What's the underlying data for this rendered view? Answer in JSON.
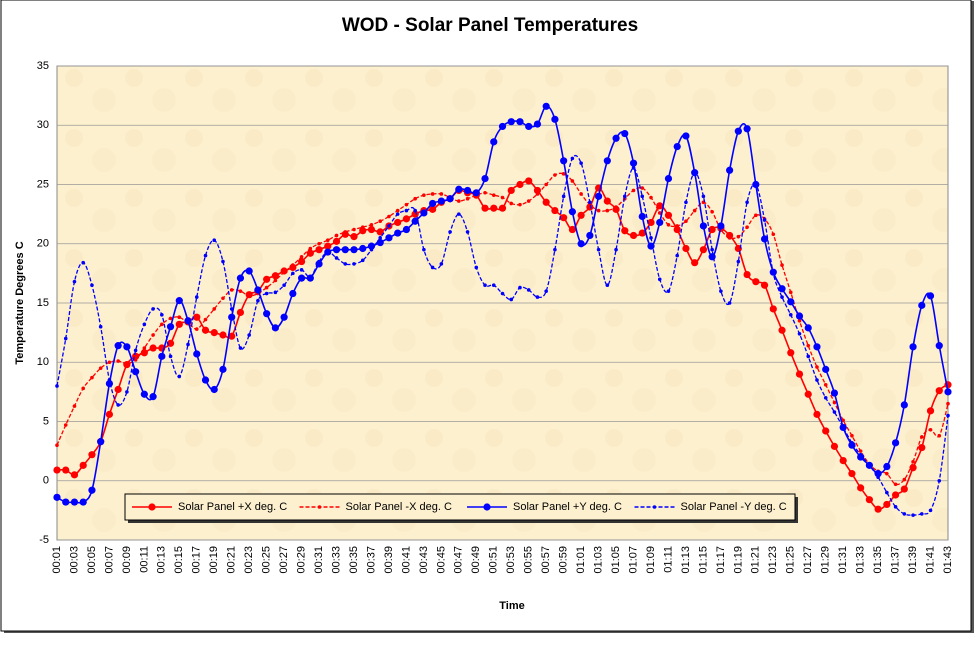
{
  "chart_data": {
    "type": "line",
    "title": "WOD - Solar Panel Temperatures",
    "x_label": "Time",
    "y_label": "Temperature Degrees C",
    "categories": [
      "00:01",
      null,
      "00:03",
      null,
      "00:05",
      null,
      "00:07",
      null,
      "00:09",
      null,
      "00:11",
      null,
      "00:13",
      null,
      "00:15",
      null,
      "00:17",
      null,
      "00:19",
      null,
      "00:21",
      null,
      "00:23",
      null,
      "00:25",
      null,
      "00:27",
      null,
      "00:29",
      null,
      "00:31",
      null,
      "00:33",
      null,
      "00:35",
      null,
      "00:37",
      null,
      "00:39",
      null,
      "00:41",
      null,
      "00:43",
      null,
      "00:45",
      null,
      "00:47",
      null,
      "00:49",
      null,
      "00:51",
      null,
      "00:53",
      null,
      "00:55",
      null,
      "00:57",
      null,
      "00:59",
      null,
      "01:01",
      null,
      "01:03",
      null,
      "01:05",
      null,
      "01:07",
      null,
      "01:09",
      null,
      "01:11",
      null,
      "01:13",
      null,
      "01:15",
      null,
      "01:17",
      null,
      "01:19",
      null,
      "01:21",
      null,
      "01:23",
      null,
      "01:25",
      null,
      "01:27",
      null,
      "01:29",
      null,
      "01:31",
      null,
      "01:33",
      null,
      "01:35",
      null,
      "01:37",
      null,
      "01:39",
      null,
      "01:41",
      null,
      "01:43"
    ],
    "series": [
      {
        "name": "Solar Panel +X deg. C",
        "color": "#ff0000",
        "line_style": "solid",
        "marker": "circle",
        "values": [
          0.9,
          0.9,
          0.5,
          1.3,
          2.2,
          3.3,
          5.6,
          7.7,
          9.8,
          10.5,
          10.8,
          11.2,
          11.2,
          11.6,
          13.2,
          13.4,
          13.8,
          12.7,
          12.5,
          12.3,
          12.2,
          14.2,
          15.7,
          16,
          17,
          17.3,
          17.7,
          18,
          18.5,
          19.2,
          19.5,
          19.8,
          20.2,
          20.8,
          20.6,
          21.1,
          21.2,
          21,
          21.5,
          21.8,
          22.1,
          22.5,
          22.8,
          22.9,
          23.5,
          23.8,
          24.5,
          24.3,
          24.1,
          23,
          23,
          23,
          24.5,
          25,
          25.3,
          24.5,
          23.5,
          22.8,
          22.2,
          21.2,
          22.4,
          23.1,
          24.7,
          23.6,
          22.9,
          21.1,
          20.7,
          20.9,
          21.8,
          23.2,
          22.4,
          21.2,
          19.6,
          18.4,
          19.5,
          21.2,
          21.3,
          20.7,
          19.6,
          17.4,
          16.8,
          16.5,
          14.5,
          12.7,
          10.8,
          9,
          7.3,
          5.6,
          4.2,
          2.9,
          1.7,
          0.6,
          -0.6,
          -1.6,
          -2.4,
          -2,
          -1.2,
          -0.7,
          1.1,
          2.8,
          5.9,
          7.6,
          8.1
        ]
      },
      {
        "name": "Solar Panel -X deg. C",
        "color": "#ff0000",
        "line_style": "dashed",
        "marker": "dot",
        "values": [
          3,
          4.7,
          6.3,
          7.8,
          8.7,
          9.5,
          10,
          10.1,
          9.9,
          10.2,
          11.2,
          12.3,
          13.2,
          13.7,
          13.8,
          13.3,
          12.8,
          13.6,
          14.5,
          15.4,
          16.1,
          16,
          15.6,
          15.8,
          16.3,
          16.9,
          17.6,
          18.2,
          18.9,
          19.6,
          20,
          20.3,
          20.7,
          21,
          21.2,
          21.4,
          21.6,
          21.9,
          22.3,
          22.8,
          23.3,
          23.8,
          24.1,
          24.2,
          24.2,
          23.9,
          23.6,
          23.8,
          24.1,
          24.3,
          24.1,
          23.9,
          23.4,
          23.3,
          23.6,
          24.2,
          25,
          25.8,
          25.9,
          25.3,
          24.2,
          23.3,
          22.8,
          22.8,
          23.1,
          23.8,
          24.5,
          24.7,
          23.9,
          22.6,
          21.6,
          21.5,
          21.9,
          22.8,
          23.5,
          22.7,
          21.2,
          20.5,
          20.6,
          21.4,
          22.4,
          22.1,
          20.8,
          18.2,
          15.9,
          13.5,
          11.4,
          9.6,
          8.1,
          6.6,
          5.1,
          3.8,
          2.5,
          1.4,
          0.8,
          0.6,
          -0.3,
          0.1,
          1.6,
          3.7,
          4.3,
          3.8,
          6.5
        ]
      },
      {
        "name": "Solar Panel +Y deg. C",
        "color": "#0000ff",
        "line_style": "solid",
        "marker": "circle",
        "values": [
          -1.4,
          -1.8,
          -1.8,
          -1.8,
          -0.8,
          3.3,
          8.2,
          11.4,
          11.3,
          9.2,
          7.3,
          7.1,
          10.5,
          13,
          15.2,
          13.5,
          10.7,
          8.5,
          7.7,
          9.4,
          13.8,
          17.1,
          17.7,
          16.1,
          14.1,
          12.9,
          13.8,
          15.8,
          17.1,
          17.1,
          18.3,
          19.3,
          19.5,
          19.5,
          19.5,
          19.6,
          19.8,
          20.1,
          20.5,
          20.9,
          21.2,
          21.9,
          22.6,
          23.4,
          23.6,
          23.8,
          24.6,
          24.5,
          24.3,
          25.5,
          28.6,
          29.9,
          30.3,
          30.3,
          29.9,
          30.1,
          31.6,
          30.5,
          27,
          22.7,
          20,
          20.7,
          24,
          27,
          28.9,
          29.3,
          26.8,
          22.3,
          19.8,
          21.8,
          25.5,
          28.2,
          29.1,
          26,
          21.5,
          18.9,
          21.5,
          26.2,
          29.5,
          29.7,
          25,
          20.4,
          17.6,
          16.2,
          15.1,
          13.9,
          12.9,
          11.3,
          9.4,
          7.4,
          4.5,
          3,
          2,
          1.3,
          0.6,
          1.2,
          3.2,
          6.4,
          11.3,
          14.8,
          15.6,
          11.4,
          7.5
        ]
      },
      {
        "name": "Solar Panel -Y deg. C",
        "color": "#0000ff",
        "line_style": "dashed",
        "marker": "dot",
        "values": [
          8,
          12,
          16.8,
          18.4,
          16.5,
          13,
          8.5,
          6.4,
          7.5,
          11,
          13.2,
          14.5,
          14,
          10.5,
          8.8,
          11.5,
          15.5,
          19,
          20.3,
          18.5,
          14.5,
          11.2,
          12.3,
          15.2,
          15.8,
          15.9,
          16.5,
          17.5,
          17.8,
          17.2,
          18.5,
          19.3,
          18.8,
          18.3,
          18.3,
          18.6,
          19.5,
          20.5,
          21.5,
          22.5,
          22.8,
          22.8,
          19.5,
          18,
          18.3,
          21,
          22.5,
          21,
          18,
          16.5,
          16.5,
          15.8,
          15.3,
          16.3,
          16.1,
          15.5,
          16,
          19.5,
          24,
          27.2,
          26.8,
          23.5,
          19.5,
          16.5,
          19.5,
          24,
          26.4,
          24,
          20.5,
          17,
          16,
          19,
          23.5,
          26,
          24,
          19.5,
          16,
          15,
          18.5,
          23.5,
          25,
          22,
          17.5,
          15.5,
          14,
          12.4,
          10.5,
          8.5,
          7,
          5.8,
          4.5,
          3.2,
          2.2,
          1.3,
          0.3,
          -1,
          -2.2,
          -2.8,
          -2.9,
          -2.8,
          -2.5,
          0,
          5.5
        ]
      }
    ],
    "ylim": [
      -5,
      35
    ],
    "yticks": [
      -5,
      0,
      5,
      10,
      15,
      20,
      25,
      30,
      35
    ],
    "grid": true,
    "legend": "bottom"
  }
}
